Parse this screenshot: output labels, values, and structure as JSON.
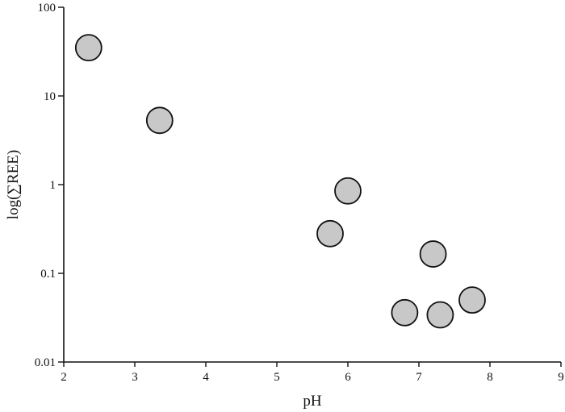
{
  "chart_data": {
    "type": "scatter",
    "xlabel": "pH",
    "ylabel": "log(∑REE)",
    "xlim": [
      2,
      9
    ],
    "ylim": [
      0.01,
      100
    ],
    "y_scale": "log",
    "grid": false,
    "x_ticks": [
      2,
      3,
      4,
      5,
      6,
      7,
      8,
      9
    ],
    "x_tick_labels": [
      "2",
      "3",
      "4",
      "5",
      "6",
      "7",
      "8",
      "9"
    ],
    "y_ticks": [
      0.01,
      0.1,
      1,
      10,
      100
    ],
    "y_tick_labels": [
      "0.01",
      "0.1",
      "1",
      "10",
      "100"
    ],
    "point_color": "#c8c8c8",
    "edge_color": "#111111",
    "points": [
      {
        "x": 2.35,
        "y": 35
      },
      {
        "x": 3.35,
        "y": 5.3
      },
      {
        "x": 5.75,
        "y": 0.28
      },
      {
        "x": 6.0,
        "y": 0.85
      },
      {
        "x": 6.8,
        "y": 0.036
      },
      {
        "x": 7.2,
        "y": 0.165
      },
      {
        "x": 7.3,
        "y": 0.034
      },
      {
        "x": 7.75,
        "y": 0.05
      }
    ]
  }
}
